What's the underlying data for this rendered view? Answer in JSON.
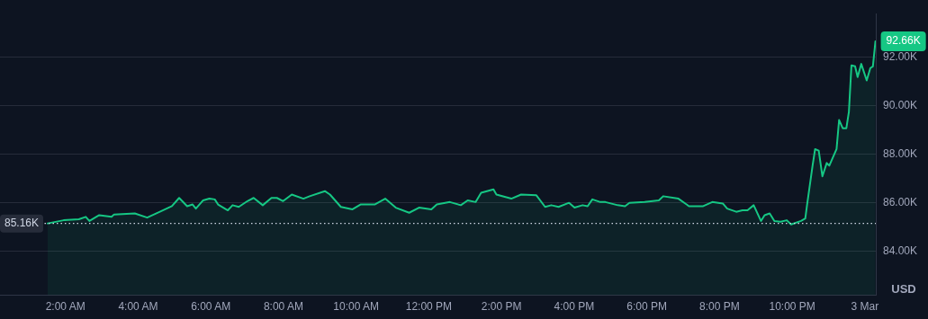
{
  "chart_data": {
    "type": "area",
    "ylabel": "USD",
    "x": [
      1.51,
      1.95,
      2.37,
      2.56,
      2.66,
      2.93,
      3.27,
      3.34,
      3.91,
      4.25,
      4.64,
      4.93,
      5.13,
      5.35,
      5.5,
      5.59,
      5.79,
      5.96,
      6.11,
      6.2,
      6.47,
      6.6,
      6.77,
      7.01,
      7.18,
      7.43,
      7.67,
      7.82,
      7.99,
      8.23,
      8.55,
      8.72,
      9.14,
      9.28,
      9.58,
      9.9,
      10.12,
      10.51,
      10.8,
      11.09,
      11.46,
      11.73,
      12.07,
      12.22,
      12.58,
      12.88,
      13.07,
      13.29,
      13.44,
      13.78,
      13.86,
      14.27,
      14.54,
      14.96,
      15.2,
      15.37,
      15.57,
      15.86,
      16.01,
      16.23,
      16.37,
      16.5,
      16.72,
      16.86,
      17.2,
      17.4,
      17.52,
      17.94,
      18.33,
      18.45,
      18.87,
      19.16,
      19.55,
      19.8,
      20.09,
      20.21,
      20.46,
      20.63,
      20.77,
      20.94,
      21.14,
      21.24,
      21.38,
      21.51,
      21.68,
      21.85,
      21.97,
      22.24,
      22.36,
      22.41,
      22.56,
      22.63,
      22.73,
      22.83,
      22.95,
      23.02,
      23.22,
      23.29,
      23.39,
      23.49,
      23.56,
      23.63,
      23.73,
      23.8,
      23.9,
      24.05,
      24.15,
      24.22,
      24.29
    ],
    "series": [
      {
        "color": "#16c784",
        "values": [
          85.16,
          85.29,
          85.33,
          85.43,
          85.26,
          85.5,
          85.43,
          85.53,
          85.57,
          85.4,
          85.67,
          85.87,
          86.21,
          85.87,
          85.94,
          85.77,
          86.11,
          86.18,
          86.15,
          85.94,
          85.7,
          85.91,
          85.84,
          86.08,
          86.21,
          85.91,
          86.21,
          86.21,
          86.08,
          86.35,
          86.18,
          86.28,
          86.49,
          86.35,
          85.84,
          85.74,
          85.94,
          85.94,
          86.18,
          85.81,
          85.6,
          85.81,
          85.74,
          85.94,
          86.04,
          85.91,
          86.11,
          86.04,
          86.42,
          86.56,
          86.35,
          86.18,
          86.35,
          86.32,
          85.84,
          85.91,
          85.84,
          86.01,
          85.81,
          85.91,
          85.87,
          86.15,
          86.04,
          86.04,
          85.91,
          85.87,
          86.01,
          86.04,
          86.11,
          86.28,
          86.18,
          85.87,
          85.87,
          86.04,
          85.98,
          85.77,
          85.64,
          85.7,
          85.7,
          85.91,
          85.26,
          85.5,
          85.57,
          85.26,
          85.23,
          85.29,
          85.12,
          85.26,
          85.36,
          85.94,
          87.54,
          88.22,
          88.16,
          87.1,
          87.65,
          87.54,
          88.22,
          89.42,
          89.08,
          89.08,
          89.76,
          91.67,
          91.63,
          91.19,
          91.73,
          91.05,
          91.56,
          91.63,
          92.66
        ]
      }
    ],
    "xlim": [
      0.2,
      24.3
    ],
    "xticks": [
      {
        "value": 2,
        "label": "2:00 AM"
      },
      {
        "value": 4,
        "label": "4:00 AM"
      },
      {
        "value": 6,
        "label": "6:00 AM"
      },
      {
        "value": 8,
        "label": "8:00 AM"
      },
      {
        "value": 10,
        "label": "10:00 AM"
      },
      {
        "value": 12,
        "label": "12:00 PM"
      },
      {
        "value": 14,
        "label": "2:00 PM"
      },
      {
        "value": 16,
        "label": "4:00 PM"
      },
      {
        "value": 18,
        "label": "6:00 PM"
      },
      {
        "value": 20,
        "label": "8:00 PM"
      },
      {
        "value": 22,
        "label": "10:00 PM"
      },
      {
        "value": 24,
        "label": "3 Mar"
      }
    ],
    "ylim": [
      82.2,
      93.8
    ],
    "yticks": [
      {
        "value": 84,
        "label": "84.00K"
      },
      {
        "value": 86,
        "label": "86.00K"
      },
      {
        "value": 88,
        "label": "88.00K"
      },
      {
        "value": 90,
        "label": "90.00K"
      },
      {
        "value": 92,
        "label": "92.00K"
      }
    ],
    "grid": "y",
    "marker": "none",
    "line_style": "solid",
    "ref_lines": [
      {
        "axis": "y",
        "value": 85.16,
        "label": "85.16K",
        "line_style": "dotted",
        "color": "#cfd6e4"
      }
    ],
    "annotations": [
      {
        "text": "92.66K",
        "x": 24.29,
        "y": 92.66
      }
    ]
  }
}
